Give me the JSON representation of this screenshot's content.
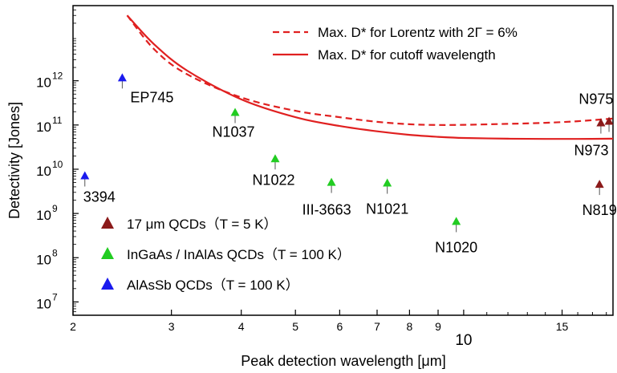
{
  "chart_data": {
    "type": "scatter",
    "title": "",
    "xlabel": "Peak detection wavelength [μm]",
    "ylabel": "Detectivity [Jones]",
    "x_scale": "log",
    "y_scale": "log",
    "xlim": [
      2,
      18.5
    ],
    "ylim": [
      5000000,
      50000000000000
    ],
    "grid": false,
    "legend_position": "bottom-left",
    "x_ticks": [
      {
        "value": 2,
        "label": "2"
      },
      {
        "value": 3,
        "label": "3"
      },
      {
        "value": 4,
        "label": "4"
      },
      {
        "value": 5,
        "label": "5"
      },
      {
        "value": 6,
        "label": "6"
      },
      {
        "value": 7,
        "label": "7"
      },
      {
        "value": 8,
        "label": "8"
      },
      {
        "value": 9,
        "label": "9"
      },
      {
        "value": 10,
        "label": "10"
      },
      {
        "value": 15,
        "label": "15"
      }
    ],
    "y_ticks": [
      {
        "value": 10000000,
        "base": "10",
        "exp": "7"
      },
      {
        "value": 100000000,
        "base": "10",
        "exp": "8"
      },
      {
        "value": 1000000000,
        "base": "10",
        "exp": "9"
      },
      {
        "value": 10000000000,
        "base": "10",
        "exp": "10"
      },
      {
        "value": 100000000000,
        "base": "10",
        "exp": "11"
      },
      {
        "value": 1000000000000,
        "base": "10",
        "exp": "12"
      }
    ],
    "series": [
      {
        "name": "17 μm QCDs（T = 5 K）",
        "color": "#8b1a1a",
        "marker": "triangle",
        "points": [
          {
            "x": 17.6,
            "y": 110000000000,
            "label": "N975"
          },
          {
            "x": 18.2,
            "y": 120000000000,
            "label": "N973"
          },
          {
            "x": 17.5,
            "y": 4500000000,
            "label": "N819"
          }
        ]
      },
      {
        "name": "InGaAs / InAlAs QCDs（T = 100 K）",
        "color": "#22cc22",
        "marker": "triangle",
        "points": [
          {
            "x": 3.9,
            "y": 190000000000,
            "label": "N1037"
          },
          {
            "x": 4.6,
            "y": 17000000000,
            "label": "N1022"
          },
          {
            "x": 5.8,
            "y": 5000000000,
            "label": "III-3663"
          },
          {
            "x": 7.3,
            "y": 4800000000,
            "label": "N1021"
          },
          {
            "x": 9.7,
            "y": 650000000,
            "label": "N1020"
          }
        ]
      },
      {
        "name": "AlAsSb QCDs（T = 100 K）",
        "color": "#1a1aee",
        "marker": "triangle",
        "points": [
          {
            "x": 2.45,
            "y": 1150000000000,
            "label": "EP745"
          },
          {
            "x": 2.1,
            "y": 7000000000,
            "label": "3394"
          }
        ]
      }
    ],
    "curves": [
      {
        "name": "Max. D* for Lorentz with 2Γ = 6%",
        "color": "#e02020",
        "style": "dashed",
        "points": [
          [
            2.5,
            30000000000000
          ],
          [
            2.8,
            5000000000000
          ],
          [
            3.2,
            1400000000000
          ],
          [
            4,
            420000000000
          ],
          [
            5,
            210000000000
          ],
          [
            6,
            150000000000
          ],
          [
            7,
            118000000000
          ],
          [
            8,
            104000000000
          ],
          [
            9,
            100000000000
          ],
          [
            10,
            101000000000
          ],
          [
            12,
            106000000000
          ],
          [
            14,
            112000000000
          ],
          [
            16,
            122000000000
          ],
          [
            18.5,
            140000000000
          ]
        ]
      },
      {
        "name": "Max. D* for cutoff wavelength",
        "color": "#e02020",
        "style": "solid",
        "points": [
          [
            2.5,
            30000000000000
          ],
          [
            2.8,
            6500000000000
          ],
          [
            3.2,
            1700000000000
          ],
          [
            4,
            380000000000
          ],
          [
            5,
            150000000000
          ],
          [
            6,
            95000000000
          ],
          [
            7,
            72000000000
          ],
          [
            8,
            60000000000
          ],
          [
            9,
            54000000000
          ],
          [
            10,
            51000000000
          ],
          [
            12,
            49000000000
          ],
          [
            14,
            48500000000
          ],
          [
            16,
            48500000000
          ],
          [
            18.5,
            49000000000
          ]
        ]
      }
    ]
  }
}
